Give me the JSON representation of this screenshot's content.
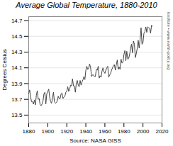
{
  "chart_data": {
    "type": "line",
    "title": "Average Global Temperature, 1880-2010",
    "xlabel": "Source: NASA GISS",
    "ylabel": "Degrees Celsius",
    "right_label": "Earth Policy Institute • www.earth-policy.org",
    "x": [
      1880,
      1881,
      1882,
      1883,
      1884,
      1885,
      1886,
      1887,
      1888,
      1889,
      1890,
      1891,
      1892,
      1893,
      1894,
      1895,
      1896,
      1897,
      1898,
      1899,
      1900,
      1901,
      1902,
      1903,
      1904,
      1905,
      1906,
      1907,
      1908,
      1909,
      1910,
      1911,
      1912,
      1913,
      1914,
      1915,
      1916,
      1917,
      1918,
      1919,
      1920,
      1921,
      1922,
      1923,
      1924,
      1925,
      1926,
      1927,
      1928,
      1929,
      1930,
      1931,
      1932,
      1933,
      1934,
      1935,
      1936,
      1937,
      1938,
      1939,
      1940,
      1941,
      1942,
      1943,
      1944,
      1945,
      1946,
      1947,
      1948,
      1949,
      1950,
      1951,
      1952,
      1953,
      1954,
      1955,
      1956,
      1957,
      1958,
      1959,
      1960,
      1961,
      1962,
      1963,
      1964,
      1965,
      1966,
      1967,
      1968,
      1969,
      1970,
      1971,
      1972,
      1973,
      1974,
      1975,
      1976,
      1977,
      1978,
      1979,
      1980,
      1981,
      1982,
      1983,
      1984,
      1985,
      1986,
      1987,
      1988,
      1989,
      1990,
      1991,
      1992,
      1993,
      1994,
      1995,
      1996,
      1997,
      1998,
      1999,
      2000,
      2001,
      2002,
      2003,
      2004,
      2005,
      2006,
      2007,
      2008,
      2009,
      2010
    ],
    "values": [
      13.77,
      13.82,
      13.73,
      13.67,
      13.67,
      13.64,
      13.69,
      13.63,
      13.75,
      13.81,
      13.7,
      13.71,
      13.63,
      13.62,
      13.64,
      13.68,
      13.77,
      13.79,
      13.64,
      13.77,
      13.8,
      13.83,
      13.73,
      13.67,
      13.65,
      13.72,
      13.79,
      13.67,
      13.65,
      13.66,
      13.68,
      13.74,
      13.71,
      13.71,
      13.77,
      13.78,
      13.71,
      13.73,
      13.74,
      13.79,
      13.8,
      13.86,
      13.8,
      13.83,
      13.88,
      13.87,
      13.96,
      13.87,
      13.87,
      13.79,
      13.91,
      13.94,
      13.88,
      13.86,
      13.94,
      13.88,
      13.92,
      13.95,
      13.99,
      13.95,
      14.07,
      14.12,
      14.08,
      14.1,
      14.15,
      14.1,
      13.99,
      14.01,
      14.01,
      13.99,
      13.99,
      14.08,
      14.07,
      14.12,
      13.97,
      14.0,
      13.98,
      14.06,
      14.1,
      14.05,
      14.03,
      14.07,
      14.1,
      14.12,
      13.98,
      14.01,
      14.03,
      14.07,
      14.1,
      14.13,
      14.14,
      14.07,
      14.14,
      14.2,
      14.08,
      14.11,
      14.08,
      14.21,
      14.16,
      14.17,
      14.27,
      14.32,
      14.19,
      14.31,
      14.21,
      14.22,
      14.27,
      14.35,
      14.4,
      14.29,
      14.44,
      14.4,
      14.23,
      14.28,
      14.35,
      14.45,
      14.35,
      14.46,
      14.61,
      14.4,
      14.42,
      14.54,
      14.56,
      14.62,
      14.55,
      14.62,
      14.61,
      14.6,
      14.54,
      14.64,
      14.63
    ],
    "color": "#444444",
    "xlim": [
      1880,
      2020
    ],
    "ylim": [
      13.4,
      14.75
    ],
    "xticks": [
      1880,
      1900,
      1920,
      1940,
      1960,
      1980,
      2000,
      2020
    ],
    "yticks": [
      13.5,
      13.7,
      13.9,
      14.1,
      14.3,
      14.5,
      14.7
    ],
    "grid": true
  }
}
